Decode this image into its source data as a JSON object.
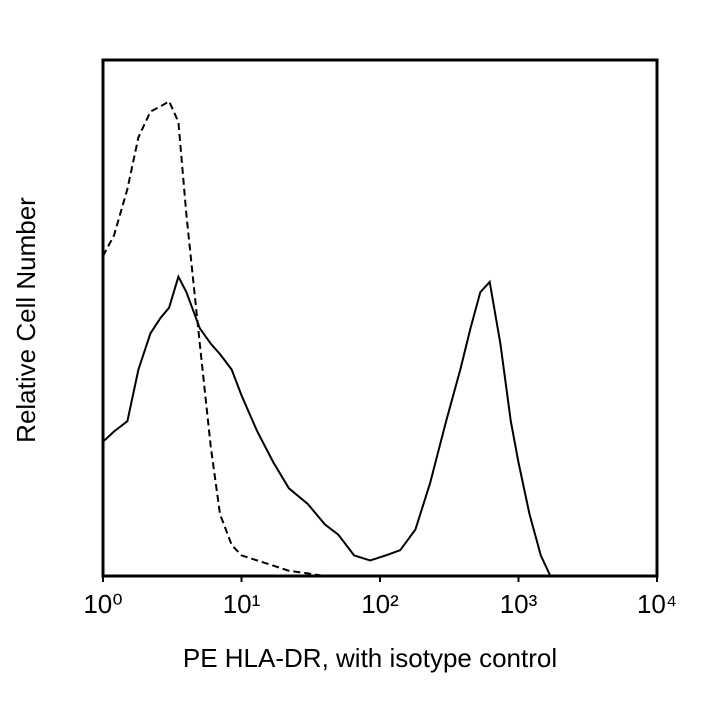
{
  "chart_data": {
    "type": "line",
    "x_label": "PE HLA-DR, with isotype control",
    "y_label": "Relative Cell Number",
    "x_scale": "log",
    "x": [
      1,
      1.2,
      1.5,
      1.8,
      2.2,
      2.6,
      3,
      3.5,
      4,
      5,
      6,
      7,
      8.5,
      10,
      13,
      17,
      22,
      30,
      40,
      50,
      65,
      85,
      110,
      140,
      180,
      230,
      300,
      380,
      450,
      530,
      620,
      740,
      880,
      1000,
      1200,
      1450,
      1700,
      2500,
      5000,
      10000
    ],
    "series": [
      {
        "color": "#000000",
        "dashed": true,
        "values": [
          62,
          66,
          75,
          85,
          90,
          91,
          92,
          88,
          70,
          45,
          25,
          12,
          6,
          4,
          3,
          2,
          1,
          0.5,
          0,
          0,
          0,
          0,
          0,
          0,
          0,
          0,
          0,
          0,
          0,
          0,
          0,
          0,
          0,
          0,
          0,
          0,
          0,
          0,
          0,
          0
        ]
      },
      {
        "color": "#000000",
        "dashed": false,
        "values": [
          26,
          28,
          30,
          40,
          47,
          50,
          52,
          58,
          55,
          48,
          45,
          43,
          40,
          35,
          28,
          22,
          17,
          14,
          10,
          8,
          4,
          3,
          4,
          5,
          9,
          18,
          30,
          40,
          48,
          55,
          57,
          45,
          30,
          22,
          12,
          4,
          0,
          0,
          0,
          0
        ]
      }
    ],
    "xlim": [
      1,
      10000
    ],
    "ylim": [
      0,
      100
    ],
    "xticks": [
      {
        "value": 1,
        "label": "10⁰"
      },
      {
        "value": 10,
        "label": "10¹"
      },
      {
        "value": 100,
        "label": "10²"
      },
      {
        "value": 1000,
        "label": "10³"
      },
      {
        "value": 10000,
        "label": "10⁴"
      }
    ]
  }
}
